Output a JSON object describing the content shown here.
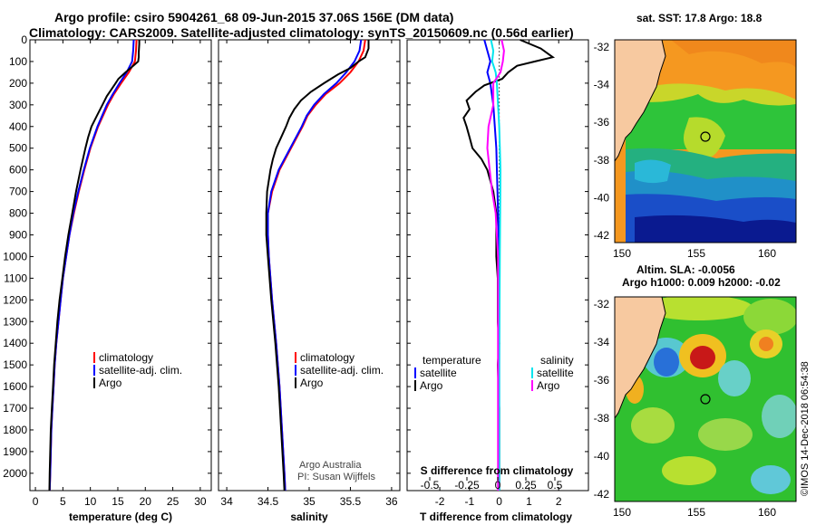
{
  "title": {
    "line1": "Argo profile: csiro 5904261_68 09-Jun-2015 37.06S 156E (DM data)",
    "line2": "Climatology: CARS2009. Satellite-adjusted climatology: synTS_20150609.nc (0.56d earlier)"
  },
  "credits": {
    "line1": "Argo Australia",
    "line2": "PI: Susan Wijffels"
  },
  "stamp": "©IMOS 14-Dec-2018 06:54:38",
  "colors": {
    "climatology": "#ff0000",
    "satellite": "#0000ff",
    "argo": "#000000",
    "salinity_satellite": "#00e5ee",
    "salinity_argo": "#ff00ff"
  },
  "maps": {
    "sst": {
      "title": "sat. SST: 17.8 Argo: 18.8",
      "lat_ticks": [
        "-32",
        "-34",
        "-36",
        "-38",
        "-40",
        "-42"
      ],
      "lon_ticks": [
        "150",
        "155",
        "160"
      ]
    },
    "sla": {
      "title_line1": "Altim. SLA: -0.0056",
      "title_line2": "Argo h1000: 0.009 h2000: -0.02",
      "lat_ticks": [
        "-32",
        "-34",
        "-36",
        "-38",
        "-40",
        "-42"
      ],
      "lon_ticks": [
        "150",
        "155",
        "160"
      ]
    }
  },
  "chart_data": [
    {
      "type": "line",
      "title": "",
      "xlabel": "temperature (deg C)",
      "ylabel": "",
      "xlim": [
        -1,
        32
      ],
      "ylim": [
        2080,
        0
      ],
      "xticks": [
        "0",
        "5",
        "10",
        "15",
        "20",
        "25",
        "30"
      ],
      "yticks": [
        "0",
        "100",
        "200",
        "300",
        "400",
        "500",
        "600",
        "700",
        "800",
        "900",
        "1000",
        "1100",
        "1200",
        "1300",
        "1400",
        "1500",
        "1600",
        "1700",
        "1800",
        "1900",
        "2000"
      ],
      "legend": [
        "climatology",
        "satellite-adj. clim.",
        "Argo"
      ],
      "series": [
        {
          "name": "climatology",
          "depth": [
            0,
            50,
            100,
            150,
            200,
            250,
            300,
            400,
            500,
            600,
            700,
            800,
            900,
            1000,
            1100,
            1200,
            1300,
            1400,
            1500,
            1600,
            1700,
            1800,
            1900,
            2000,
            2080
          ],
          "values": [
            18.4,
            18.3,
            18.1,
            17.0,
            15.6,
            14.3,
            13.2,
            11.4,
            10.0,
            8.9,
            7.9,
            7.0,
            6.2,
            5.6,
            5.0,
            4.6,
            4.2,
            3.8,
            3.5,
            3.3,
            3.1,
            2.9,
            2.8,
            2.7,
            2.6
          ]
        },
        {
          "name": "satellite-adj. clim.",
          "depth": [
            0,
            50,
            100,
            150,
            200,
            250,
            300,
            400,
            500,
            600,
            700,
            800,
            900,
            1000,
            1100,
            1200,
            1300,
            1400,
            1500,
            1600,
            1700,
            1800,
            1900,
            2000,
            2080
          ],
          "values": [
            17.9,
            17.8,
            17.6,
            16.6,
            15.3,
            14.1,
            13.0,
            11.3,
            9.9,
            8.8,
            7.8,
            6.9,
            6.2,
            5.6,
            5.0,
            4.6,
            4.2,
            3.8,
            3.5,
            3.3,
            3.1,
            2.9,
            2.8,
            2.7,
            2.6
          ]
        },
        {
          "name": "Argo",
          "depth": [
            0,
            20,
            60,
            80,
            100,
            120,
            150,
            180,
            200,
            230,
            260,
            300,
            350,
            400,
            450,
            500,
            600,
            700,
            800,
            900,
            1000,
            1100,
            1200,
            1300,
            1400,
            1500,
            1600,
            1700,
            1800,
            1900,
            2000,
            2080
          ],
          "values": [
            18.9,
            18.9,
            18.8,
            18.8,
            18.7,
            17.8,
            16.4,
            15.1,
            14.6,
            13.8,
            13.0,
            12.2,
            11.2,
            10.2,
            9.6,
            9.1,
            8.2,
            7.4,
            6.7,
            6.0,
            5.4,
            4.9,
            4.4,
            4.0,
            3.7,
            3.4,
            3.2,
            3.0,
            2.8,
            2.7,
            2.6,
            2.55
          ]
        }
      ]
    },
    {
      "type": "line",
      "title": "",
      "xlabel": "salinity",
      "ylabel": "",
      "xlim": [
        33.9,
        36.1
      ],
      "ylim": [
        2080,
        0
      ],
      "xticks": [
        "34",
        "34.5",
        "35",
        "35.5",
        "36"
      ],
      "legend": [
        "climatology",
        "satellite-adj. clim.",
        "Argo"
      ],
      "series": [
        {
          "name": "climatology",
          "depth": [
            0,
            50,
            100,
            150,
            200,
            250,
            300,
            350,
            400,
            500,
            600,
            700,
            800,
            900,
            1000,
            1200,
            1400,
            1600,
            1800,
            2000,
            2080
          ],
          "values": [
            35.68,
            35.66,
            35.6,
            35.5,
            35.37,
            35.2,
            35.08,
            34.98,
            34.92,
            34.78,
            34.64,
            34.55,
            34.5,
            34.5,
            34.51,
            34.55,
            34.6,
            34.64,
            34.67,
            34.7,
            34.71
          ]
        },
        {
          "name": "satellite-adj. clim.",
          "depth": [
            0,
            50,
            100,
            150,
            200,
            250,
            300,
            350,
            400,
            500,
            600,
            700,
            800,
            900,
            1000,
            1200,
            1400,
            1600,
            1800,
            2000,
            2080
          ],
          "values": [
            35.63,
            35.61,
            35.55,
            35.45,
            35.33,
            35.18,
            35.06,
            34.97,
            34.91,
            34.77,
            34.63,
            34.54,
            34.5,
            34.5,
            34.51,
            34.55,
            34.6,
            34.64,
            34.67,
            34.7,
            34.71
          ]
        },
        {
          "name": "Argo",
          "depth": [
            0,
            40,
            80,
            100,
            130,
            160,
            200,
            240,
            280,
            320,
            360,
            400,
            450,
            500,
            550,
            600,
            700,
            800,
            900,
            1000,
            1200,
            1400,
            1600,
            1800,
            2000,
            2080
          ],
          "values": [
            35.72,
            35.72,
            35.68,
            35.6,
            35.5,
            35.35,
            35.18,
            35.02,
            34.9,
            34.82,
            34.76,
            34.72,
            34.66,
            34.6,
            34.56,
            34.53,
            34.49,
            34.48,
            34.48,
            34.5,
            34.54,
            34.59,
            34.63,
            34.66,
            34.69,
            34.7
          ]
        }
      ]
    },
    {
      "type": "line",
      "title": "",
      "xlabel": "T difference from climatology",
      "ylabel": "",
      "xlim": [
        -3.1,
        3.0
      ],
      "ylim": [
        2080,
        0
      ],
      "xticks": [
        "-2",
        "-1",
        "0",
        "1",
        "2"
      ],
      "second_axis_label": "S difference from climatology",
      "second_xticks": [
        "-0.5",
        "-0.25",
        "0",
        "0.25",
        "0.5"
      ],
      "legend_left_title": "temperature",
      "legend_right_title": "salinity",
      "legend": [
        "satellite",
        "Argo",
        "satellite",
        "Argo"
      ],
      "series": [
        {
          "name": "temperature satellite",
          "depth": [
            0,
            50,
            100,
            150,
            200,
            300,
            500,
            1000,
            1500,
            2000,
            2080
          ],
          "values": [
            -0.5,
            -0.4,
            -0.3,
            -0.4,
            -0.3,
            -0.2,
            -0.1,
            0,
            0,
            0,
            0
          ]
        },
        {
          "name": "temperature Argo",
          "depth": [
            0,
            40,
            80,
            100,
            120,
            150,
            180,
            210,
            240,
            280,
            320,
            360,
            400,
            450,
            500,
            550,
            600,
            700,
            800,
            900,
            1000,
            1100,
            1200,
            1300,
            1400,
            1500,
            1700,
            1900,
            2080
          ],
          "values": [
            0.7,
            1.4,
            1.8,
            1.2,
            0.6,
            0.3,
            0.1,
            -0.5,
            -0.8,
            -1.1,
            -1.0,
            -1.2,
            -1.1,
            -1.0,
            -0.9,
            -0.6,
            -0.4,
            -0.2,
            -0.1,
            -0.1,
            -0.1,
            -0.05,
            -0.05,
            -0.05,
            0,
            -0.05,
            0,
            0,
            0
          ]
        },
        {
          "name": "salinity satellite",
          "depth": [
            0,
            50,
            100,
            150,
            200,
            300,
            400,
            600,
            1000,
            1500,
            2000,
            2080
          ],
          "values": [
            -0.07,
            -0.05,
            -0.06,
            -0.03,
            -0.02,
            -0.01,
            0,
            0.01,
            0.005,
            0,
            0,
            0
          ]
        },
        {
          "name": "salinity Argo",
          "depth": [
            0,
            50,
            100,
            150,
            200,
            300,
            400,
            500,
            600,
            700,
            800,
            900,
            1000,
            1200,
            1500,
            2000,
            2080
          ],
          "values": [
            0.02,
            0.04,
            0.03,
            0.01,
            -0.05,
            -0.05,
            -0.09,
            -0.1,
            -0.08,
            -0.06,
            -0.03,
            -0.02,
            -0.01,
            -0.01,
            -0.01,
            -0.01,
            -0.01
          ]
        }
      ]
    }
  ]
}
